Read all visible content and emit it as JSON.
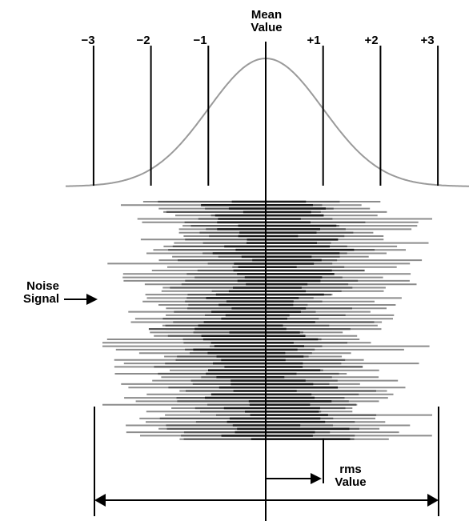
{
  "labels": {
    "mean_line1": "Mean",
    "mean_line2": "Value",
    "sigma": [
      "−3",
      "−2",
      "−1",
      "+1",
      "+2",
      "+3"
    ],
    "noise_line1": "Noise",
    "noise_line2": "Signal",
    "rms_line1": "rms",
    "rms_line2": "Value"
  },
  "colors": {
    "curve": "#9a9a9a",
    "lines": "#000000",
    "noise_dark": "#1a1a1a",
    "noise_mid": "#555555",
    "noise_light": "#8c8c8c"
  }
}
